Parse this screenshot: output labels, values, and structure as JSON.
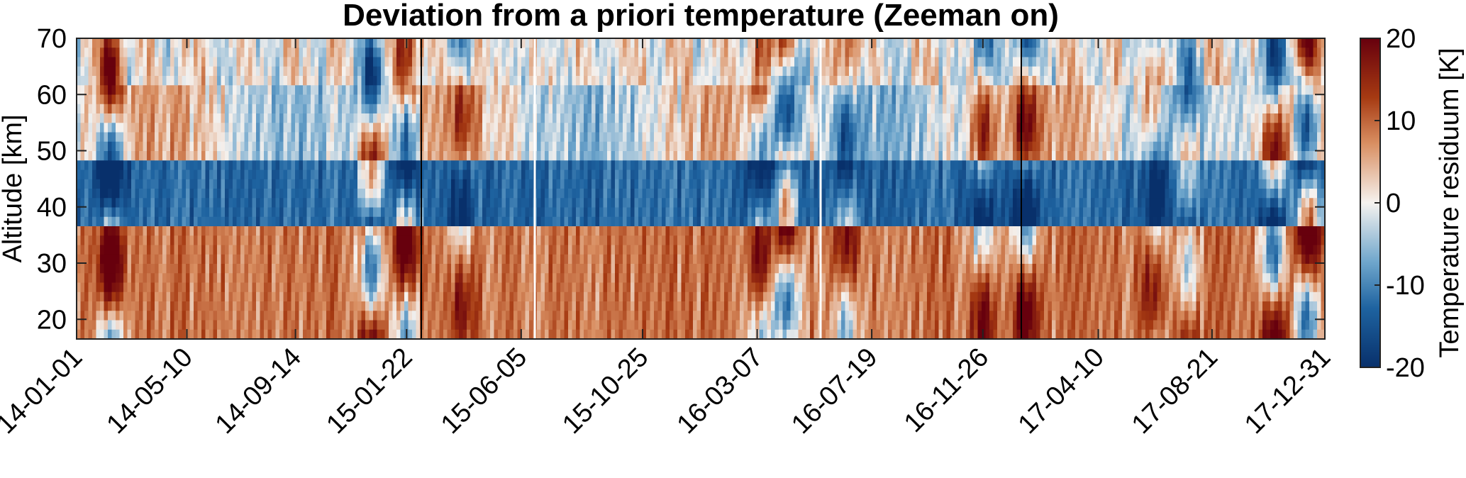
{
  "chart_data": {
    "type": "heatmap",
    "title": "Deviation from a priori temperature (Zeeman on)",
    "xlabel": "",
    "ylabel": "Altitude [km]",
    "x_tick_labels": [
      "14-01-01",
      "14-05-10",
      "14-09-14",
      "15-01-22",
      "15-06-05",
      "15-10-25",
      "16-03-07",
      "16-07-19",
      "16-11-26",
      "17-04-10",
      "17-08-21",
      "17-12-31"
    ],
    "x_ticks": [
      "2014-01-01",
      "2014-05-10",
      "2014-09-14",
      "2015-01-22",
      "2015-06-05",
      "2015-10-25",
      "2016-03-07",
      "2016-07-19",
      "2016-11-26",
      "2017-04-10",
      "2017-08-21",
      "2017-12-31"
    ],
    "xlim": [
      "2014-01-01",
      "2017-12-31"
    ],
    "y_ticks": [
      20,
      30,
      40,
      50,
      60,
      70
    ],
    "ylim": [
      16.5,
      70
    ],
    "colorbar": {
      "label": "Temperature residuum [K]",
      "ticks": [
        20,
        10,
        0,
        -10,
        -20
      ],
      "range": [
        -20,
        20
      ],
      "colormap": "blue-white-red (diverging)",
      "color_min": "#08306b",
      "color_mid": "#f5f2ef",
      "color_max": "#67000d"
    },
    "grid": false,
    "colors": {
      "cold": "#08306b",
      "neutral": "#f5f2ef",
      "warm": "#67000d"
    }
  }
}
